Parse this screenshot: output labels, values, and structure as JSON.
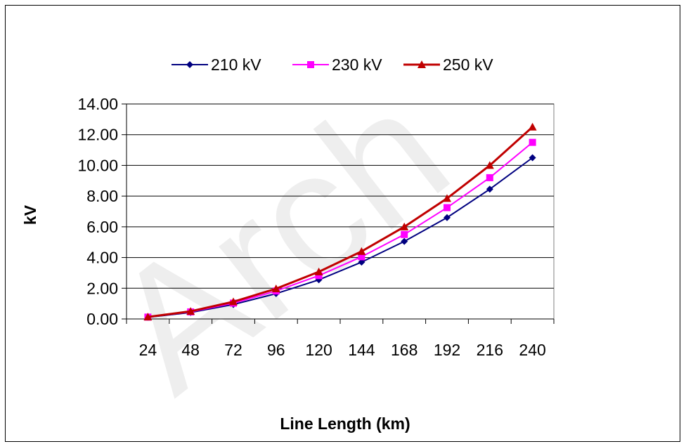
{
  "chart_data": {
    "type": "line",
    "categories": [
      "24",
      "48",
      "72",
      "96",
      "120",
      "144",
      "168",
      "192",
      "216",
      "240"
    ],
    "series": [
      {
        "name": "210 kV",
        "color": "#000080",
        "marker": "diamond",
        "values": [
          0.11,
          0.42,
          0.94,
          1.65,
          2.55,
          3.7,
          5.05,
          6.6,
          8.45,
          10.5
        ]
      },
      {
        "name": "230 kV",
        "color": "#ff00ff",
        "marker": "square",
        "values": [
          0.12,
          0.46,
          1.03,
          1.82,
          2.82,
          4.05,
          5.5,
          7.25,
          9.2,
          11.5
        ]
      },
      {
        "name": "250 kV",
        "color": "#c00000",
        "marker": "triangle",
        "values": [
          0.13,
          0.5,
          1.12,
          1.97,
          3.07,
          4.4,
          6.0,
          7.85,
          10.0,
          12.5
        ]
      }
    ],
    "xlabel": "Line Length (km)",
    "ylabel": "kV",
    "ylim": [
      0,
      14
    ],
    "yticks": [
      "0.00",
      "2.00",
      "4.00",
      "6.00",
      "8.00",
      "10.00",
      "12.00",
      "14.00"
    ],
    "grid": "horizontal",
    "legend_position": "top"
  },
  "watermark": "Arch"
}
